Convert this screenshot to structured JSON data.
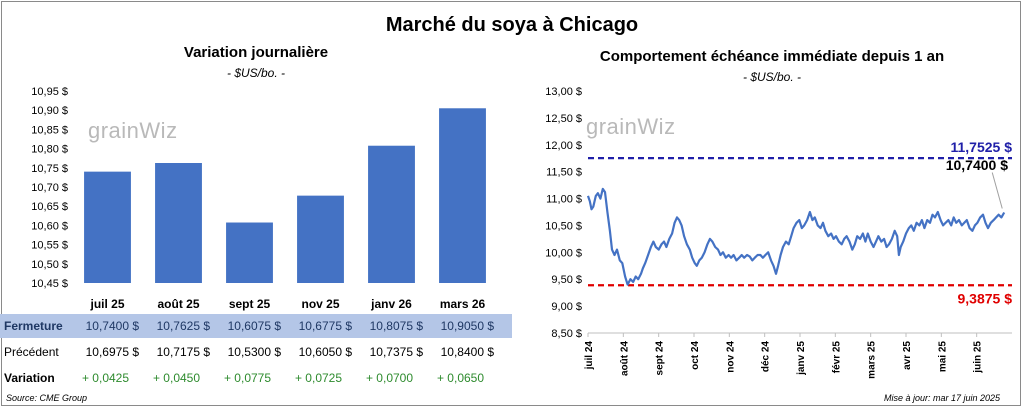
{
  "title": "Marché du soya à Chicago",
  "left": {
    "title": "Variation journalière",
    "units": "- $US/bo. -",
    "logo": "grainwiz",
    "chart_data": {
      "type": "bar",
      "categories": [
        "juil 25",
        "août 25",
        "sept 25",
        "nov 25",
        "janv 26",
        "mars 26"
      ],
      "values": [
        10.74,
        10.7625,
        10.6075,
        10.6775,
        10.8075,
        10.905
      ],
      "ylim": [
        10.45,
        10.95
      ],
      "yticks": [
        "10,45 $",
        "10,50 $",
        "10,55 $",
        "10,60 $",
        "10,65 $",
        "10,70 $",
        "10,75 $",
        "10,80 $",
        "10,85 $",
        "10,90 $",
        "10,95 $"
      ],
      "bar_color": "#4472c4"
    },
    "table": {
      "rows": [
        {
          "label": "Fermeture",
          "values": [
            "10,7400  $",
            "10,7625  $",
            "10,6075  $",
            "10,6775  $",
            "10,8075  $",
            "10,9050  $"
          ]
        },
        {
          "label": "Précédent",
          "values": [
            "10,6975  $",
            "10,7175  $",
            "10,5300  $",
            "10,6050  $",
            "10,7375  $",
            "10,8400  $"
          ]
        },
        {
          "label": "Variation",
          "values": [
            "+ 0,0425",
            "+ 0,0450",
            "+ 0,0775",
            "+ 0,0725",
            "+ 0,0700",
            "+ 0,0650"
          ]
        }
      ],
      "highlight_color": "#b4c6e7",
      "positive_color": "#2e8b2e"
    },
    "source": "Source: CME Group"
  },
  "right": {
    "title": "Comportement échéance immédiate depuis 1 an",
    "units": "- $US/bo. -",
    "logo": "grainwiz",
    "updated": "Mise à jour: mar 17 juin 2025",
    "chart_data": {
      "type": "line",
      "ylim": [
        8.5,
        13.0
      ],
      "yticks": [
        "8,50 $",
        "9,00 $",
        "9,50 $",
        "10,00 $",
        "10,50 $",
        "11,00 $",
        "11,50 $",
        "12,00 $",
        "12,50 $",
        "13,00 $"
      ],
      "xticks": [
        "juil 24",
        "août 24",
        "sept 24",
        "oct 24",
        "nov 24",
        "déc 24",
        "janv 25",
        "févr 25",
        "mars 25",
        "avr 25",
        "mai 25",
        "juin 25"
      ],
      "x_months_span": 12,
      "series": [
        {
          "color": "#4472c4",
          "points": [
            [
              0.0,
              11.05
            ],
            [
              0.05,
              10.95
            ],
            [
              0.1,
              10.8
            ],
            [
              0.15,
              10.85
            ],
            [
              0.22,
              11.05
            ],
            [
              0.28,
              11.1
            ],
            [
              0.35,
              11.0
            ],
            [
              0.42,
              11.18
            ],
            [
              0.48,
              11.12
            ],
            [
              0.55,
              10.75
            ],
            [
              0.62,
              10.4
            ],
            [
              0.68,
              10.05
            ],
            [
              0.75,
              9.95
            ],
            [
              0.82,
              10.05
            ],
            [
              0.9,
              9.85
            ],
            [
              0.97,
              9.8
            ],
            [
              1.05,
              9.55
            ],
            [
              1.12,
              9.4
            ],
            [
              1.2,
              9.5
            ],
            [
              1.28,
              9.45
            ],
            [
              1.35,
              9.55
            ],
            [
              1.42,
              9.5
            ],
            [
              1.5,
              9.6
            ],
            [
              1.55,
              9.7
            ],
            [
              1.62,
              9.8
            ],
            [
              1.7,
              9.95
            ],
            [
              1.78,
              10.1
            ],
            [
              1.85,
              10.2
            ],
            [
              1.92,
              10.1
            ],
            [
              2.0,
              10.05
            ],
            [
              2.08,
              10.15
            ],
            [
              2.15,
              10.2
            ],
            [
              2.22,
              10.1
            ],
            [
              2.3,
              10.25
            ],
            [
              2.38,
              10.35
            ],
            [
              2.45,
              10.55
            ],
            [
              2.52,
              10.65
            ],
            [
              2.58,
              10.6
            ],
            [
              2.65,
              10.5
            ],
            [
              2.72,
              10.3
            ],
            [
              2.8,
              10.15
            ],
            [
              2.88,
              10.05
            ],
            [
              2.95,
              9.9
            ],
            [
              3.02,
              9.8
            ],
            [
              3.08,
              9.75
            ],
            [
              3.15,
              9.85
            ],
            [
              3.22,
              9.9
            ],
            [
              3.3,
              10.0
            ],
            [
              3.38,
              10.15
            ],
            [
              3.45,
              10.25
            ],
            [
              3.52,
              10.2
            ],
            [
              3.6,
              10.1
            ],
            [
              3.68,
              10.05
            ],
            [
              3.75,
              9.95
            ],
            [
              3.82,
              10.0
            ],
            [
              3.9,
              9.9
            ],
            [
              3.98,
              9.95
            ],
            [
              4.05,
              9.9
            ],
            [
              4.12,
              9.95
            ],
            [
              4.2,
              9.85
            ],
            [
              4.28,
              9.9
            ],
            [
              4.35,
              9.95
            ],
            [
              4.42,
              9.9
            ],
            [
              4.5,
              9.95
            ],
            [
              4.58,
              9.92
            ],
            [
              4.65,
              9.85
            ],
            [
              4.72,
              9.9
            ],
            [
              4.8,
              9.95
            ],
            [
              4.88,
              9.95
            ],
            [
              4.95,
              9.9
            ],
            [
              5.02,
              9.95
            ],
            [
              5.1,
              10.0
            ],
            [
              5.18,
              9.85
            ],
            [
              5.25,
              9.75
            ],
            [
              5.32,
              9.6
            ],
            [
              5.38,
              9.75
            ],
            [
              5.45,
              9.95
            ],
            [
              5.52,
              10.1
            ],
            [
              5.6,
              10.2
            ],
            [
              5.68,
              10.15
            ],
            [
              5.75,
              10.3
            ],
            [
              5.82,
              10.45
            ],
            [
              5.9,
              10.55
            ],
            [
              5.98,
              10.6
            ],
            [
              6.05,
              10.45
            ],
            [
              6.12,
              10.5
            ],
            [
              6.2,
              10.6
            ],
            [
              6.28,
              10.75
            ],
            [
              6.35,
              10.6
            ],
            [
              6.42,
              10.65
            ],
            [
              6.5,
              10.5
            ],
            [
              6.58,
              10.45
            ],
            [
              6.65,
              10.55
            ],
            [
              6.72,
              10.4
            ],
            [
              6.8,
              10.3
            ],
            [
              6.88,
              10.35
            ],
            [
              6.95,
              10.25
            ],
            [
              7.02,
              10.3
            ],
            [
              7.1,
              10.2
            ],
            [
              7.18,
              10.15
            ],
            [
              7.25,
              10.25
            ],
            [
              7.32,
              10.3
            ],
            [
              7.4,
              10.2
            ],
            [
              7.48,
              10.05
            ],
            [
              7.55,
              10.15
            ],
            [
              7.62,
              10.3
            ],
            [
              7.7,
              10.25
            ],
            [
              7.78,
              10.35
            ],
            [
              7.85,
              10.2
            ],
            [
              7.92,
              10.35
            ],
            [
              8.0,
              10.2
            ],
            [
              8.08,
              10.1
            ],
            [
              8.15,
              10.2
            ],
            [
              8.22,
              10.3
            ],
            [
              8.3,
              10.2
            ],
            [
              8.38,
              10.25
            ],
            [
              8.45,
              10.1
            ],
            [
              8.52,
              10.15
            ],
            [
              8.6,
              10.25
            ],
            [
              8.68,
              10.4
            ],
            [
              8.75,
              10.3
            ],
            [
              8.8,
              9.95
            ],
            [
              8.85,
              10.1
            ],
            [
              8.92,
              10.2
            ],
            [
              9.0,
              10.35
            ],
            [
              9.08,
              10.45
            ],
            [
              9.15,
              10.5
            ],
            [
              9.22,
              10.4
            ],
            [
              9.3,
              10.55
            ],
            [
              9.38,
              10.5
            ],
            [
              9.45,
              10.6
            ],
            [
              9.52,
              10.45
            ],
            [
              9.6,
              10.6
            ],
            [
              9.68,
              10.55
            ],
            [
              9.75,
              10.7
            ],
            [
              9.82,
              10.65
            ],
            [
              9.9,
              10.75
            ],
            [
              9.98,
              10.6
            ],
            [
              10.05,
              10.5
            ],
            [
              10.12,
              10.55
            ],
            [
              10.2,
              10.6
            ],
            [
              10.28,
              10.5
            ],
            [
              10.35,
              10.65
            ],
            [
              10.42,
              10.55
            ],
            [
              10.5,
              10.6
            ],
            [
              10.58,
              10.5
            ],
            [
              10.65,
              10.55
            ],
            [
              10.72,
              10.6
            ],
            [
              10.8,
              10.45
            ],
            [
              10.88,
              10.4
            ],
            [
              10.95,
              10.5
            ],
            [
              11.02,
              10.55
            ],
            [
              11.1,
              10.65
            ],
            [
              11.18,
              10.7
            ],
            [
              11.25,
              10.55
            ],
            [
              11.32,
              10.45
            ],
            [
              11.4,
              10.55
            ],
            [
              11.48,
              10.6
            ],
            [
              11.55,
              10.65
            ],
            [
              11.62,
              10.7
            ],
            [
              11.7,
              10.65
            ],
            [
              11.78,
              10.74
            ]
          ]
        }
      ],
      "hlines": [
        {
          "value": 11.7525,
          "label": "11,7525 $",
          "color": "#1f1fa8"
        },
        {
          "value": 9.3875,
          "label": "9,3875 $",
          "color": "#e00000"
        }
      ],
      "last_label": {
        "value": 10.74,
        "label": "10,7400 $",
        "color": "#000000"
      }
    }
  }
}
